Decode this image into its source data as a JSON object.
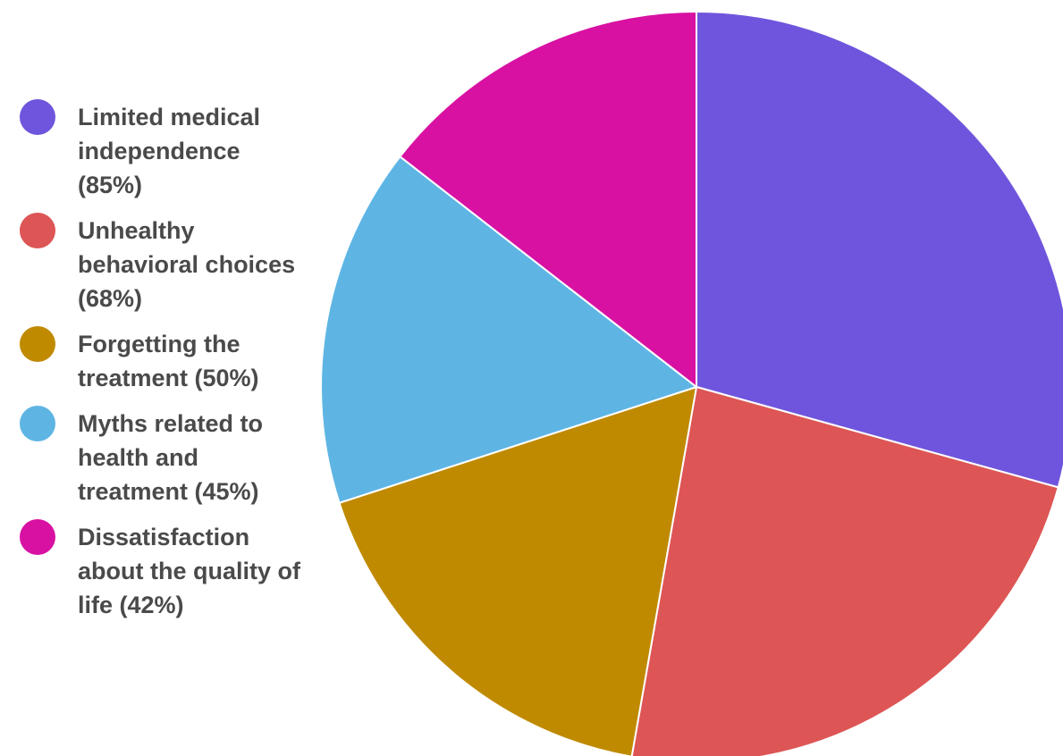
{
  "chart_data": {
    "type": "pie",
    "legend_position": "left",
    "start_angle": "top",
    "direction": "clockwise",
    "series": [
      {
        "name": "Limited medical independence",
        "value": 85,
        "label": "Limited medical independence (85%)",
        "color": "#6F55DD"
      },
      {
        "name": "Unhealthy behavioral choices",
        "value": 68,
        "label": "Unhealthy behavioral choices (68%)",
        "color": "#DD5555"
      },
      {
        "name": "Forgetting the treatment",
        "value": 50,
        "label": "Forgetting the treatment (50%)",
        "color": "#BF8A00"
      },
      {
        "name": "Myths related to health and treatment",
        "value": 45,
        "label": "Myths related to health and treatment (45%)",
        "color": "#5EB5E4"
      },
      {
        "name": "Dissatisfaction about the quality of life",
        "value": 42,
        "label": "Dissatisfaction about the quality of life (42%)",
        "color": "#D811A3"
      }
    ]
  }
}
